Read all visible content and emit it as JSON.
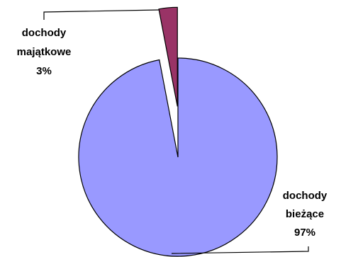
{
  "chart_data": {
    "type": "pie",
    "title": "",
    "slices": [
      {
        "label": "dochody bieżące",
        "value": 97,
        "display": "97%",
        "color": "#9999FF",
        "exploded": false
      },
      {
        "label": "dochody majątkowe",
        "value": 3,
        "display": "3%",
        "color": "#993366",
        "exploded": true
      }
    ],
    "legend": "none",
    "slice_border_color": "#000000"
  },
  "labels": {
    "current": {
      "line1": "dochody",
      "line2": "bieżące",
      "pct": "97%"
    },
    "property": {
      "line1": "dochody",
      "line2": "majątkowe",
      "pct": "3%"
    }
  }
}
